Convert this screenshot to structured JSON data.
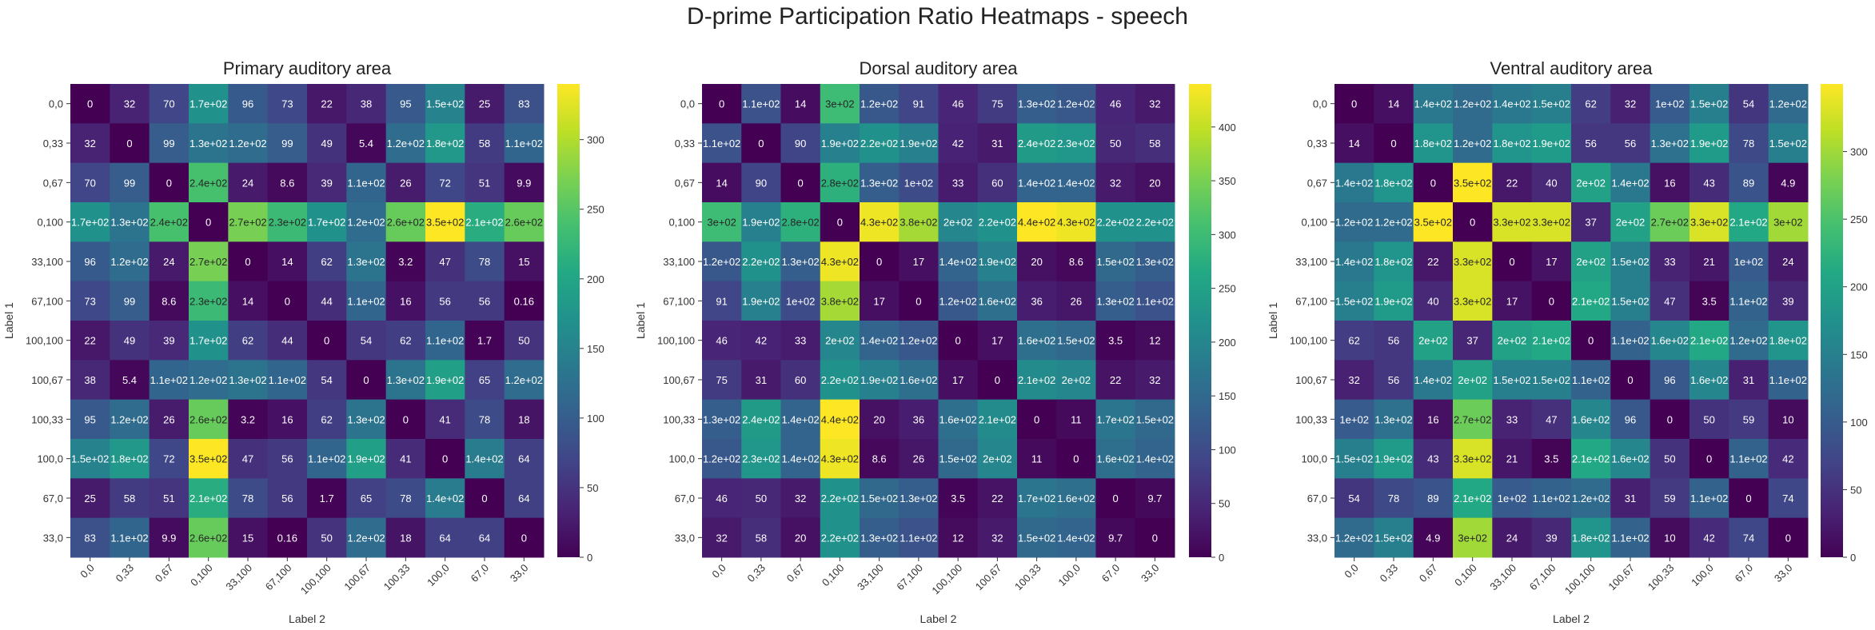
{
  "suptitle": "D-prime Participation Ratio Heatmaps - speech",
  "chart_data": [
    {
      "type": "heatmap",
      "title": "Primary auditory area",
      "xlabel": "Label 2",
      "ylabel": "Label 1",
      "categories": [
        "0,0",
        "0,33",
        "0,67",
        "0,100",
        "33,100",
        "67,100",
        "100,100",
        "100,67",
        "100,33",
        "100,0",
        "67,0",
        "33,0"
      ],
      "colorbar": {
        "min": 0,
        "max": 340,
        "ticks": [
          0,
          50,
          100,
          150,
          200,
          250,
          300
        ]
      },
      "colormap": "viridis",
      "values": [
        [
          0,
          32,
          70,
          170,
          96,
          73,
          22,
          38,
          95,
          150,
          25,
          83
        ],
        [
          32,
          0,
          99,
          130,
          120,
          99,
          49,
          5.4,
          120,
          180,
          58,
          110
        ],
        [
          70,
          99,
          0,
          240,
          24,
          8.6,
          39,
          110,
          26,
          72,
          51,
          9.9
        ],
        [
          170,
          130,
          240,
          0,
          270,
          230,
          170,
          120,
          260,
          350,
          210,
          260
        ],
        [
          96,
          120,
          24,
          270,
          0,
          14,
          62,
          130,
          3.2,
          47,
          78,
          15
        ],
        [
          73,
          99,
          8.6,
          230,
          14,
          0,
          44,
          110,
          16,
          56,
          56,
          0.16
        ],
        [
          22,
          49,
          39,
          170,
          62,
          44,
          0,
          54,
          62,
          110,
          1.7,
          50
        ],
        [
          38,
          5.4,
          110,
          120,
          130,
          110,
          54,
          0,
          130,
          190,
          65,
          120
        ],
        [
          95,
          120,
          26,
          260,
          3.2,
          16,
          62,
          130,
          0,
          41,
          78,
          18
        ],
        [
          150,
          180,
          72,
          350,
          47,
          56,
          110,
          190,
          41,
          0,
          140,
          64
        ],
        [
          25,
          58,
          51,
          210,
          78,
          56,
          1.7,
          65,
          78,
          140,
          0,
          64
        ],
        [
          83,
          110,
          9.9,
          260,
          15,
          0.16,
          50,
          120,
          18,
          64,
          64,
          0
        ]
      ],
      "labels": [
        [
          "0",
          "32",
          "70",
          "1.7e+02",
          "96",
          "73",
          "22",
          "38",
          "95",
          "1.5e+02",
          "25",
          "83"
        ],
        [
          "32",
          "0",
          "99",
          "1.3e+02",
          "1.2e+02",
          "99",
          "49",
          "5.4",
          "1.2e+02",
          "1.8e+02",
          "58",
          "1.1e+02"
        ],
        [
          "70",
          "99",
          "0",
          "2.4e+02",
          "24",
          "8.6",
          "39",
          "1.1e+02",
          "26",
          "72",
          "51",
          "9.9"
        ],
        [
          "1.7e+02",
          "1.3e+02",
          "2.4e+02",
          "0",
          "2.7e+02",
          "2.3e+02",
          "1.7e+02",
          "1.2e+02",
          "2.6e+02",
          "3.5e+02",
          "2.1e+02",
          "2.6e+02"
        ],
        [
          "96",
          "1.2e+02",
          "24",
          "2.7e+02",
          "0",
          "14",
          "62",
          "1.3e+02",
          "3.2",
          "47",
          "78",
          "15"
        ],
        [
          "73",
          "99",
          "8.6",
          "2.3e+02",
          "14",
          "0",
          "44",
          "1.1e+02",
          "16",
          "56",
          "56",
          "0.16"
        ],
        [
          "22",
          "49",
          "39",
          "1.7e+02",
          "62",
          "44",
          "0",
          "54",
          "62",
          "1.1e+02",
          "1.7",
          "50"
        ],
        [
          "38",
          "5.4",
          "1.1e+02",
          "1.2e+02",
          "1.3e+02",
          "1.1e+02",
          "54",
          "0",
          "1.3e+02",
          "1.9e+02",
          "65",
          "1.2e+02"
        ],
        [
          "95",
          "1.2e+02",
          "26",
          "2.6e+02",
          "3.2",
          "16",
          "62",
          "1.3e+02",
          "0",
          "41",
          "78",
          "18"
        ],
        [
          "1.5e+02",
          "1.8e+02",
          "72",
          "3.5e+02",
          "47",
          "56",
          "1.1e+02",
          "1.9e+02",
          "41",
          "0",
          "1.4e+02",
          "64"
        ],
        [
          "25",
          "58",
          "51",
          "2.1e+02",
          "78",
          "56",
          "1.7",
          "65",
          "78",
          "1.4e+02",
          "0",
          "64"
        ],
        [
          "83",
          "1.1e+02",
          "9.9",
          "2.6e+02",
          "15",
          "0.16",
          "50",
          "1.2e+02",
          "18",
          "64",
          "64",
          "0"
        ]
      ]
    },
    {
      "type": "heatmap",
      "title": "Dorsal auditory area",
      "xlabel": "Label 2",
      "ylabel": "Label 1",
      "categories": [
        "0,0",
        "0,33",
        "0,67",
        "0,100",
        "33,100",
        "67,100",
        "100,100",
        "100,67",
        "100,33",
        "100,0",
        "67,0",
        "33,0"
      ],
      "colorbar": {
        "min": 0,
        "max": 440,
        "ticks": [
          0,
          50,
          100,
          150,
          200,
          250,
          300,
          350,
          400
        ]
      },
      "colormap": "viridis",
      "values": [
        [
          0,
          110,
          14,
          300,
          120,
          91,
          46,
          75,
          130,
          120,
          46,
          32
        ],
        [
          110,
          0,
          90,
          190,
          220,
          190,
          42,
          31,
          240,
          230,
          50,
          58
        ],
        [
          14,
          90,
          0,
          280,
          130,
          100,
          33,
          60,
          140,
          140,
          32,
          20
        ],
        [
          300,
          190,
          280,
          0,
          430,
          380,
          200,
          220,
          440,
          430,
          220,
          220
        ],
        [
          120,
          220,
          130,
          430,
          0,
          17,
          140,
          190,
          20,
          8.6,
          150,
          130
        ],
        [
          91,
          190,
          100,
          380,
          17,
          0,
          120,
          160,
          36,
          26,
          130,
          110
        ],
        [
          46,
          42,
          33,
          200,
          140,
          120,
          0,
          17,
          160,
          150,
          3.5,
          12
        ],
        [
          75,
          31,
          60,
          220,
          190,
          160,
          17,
          0,
          210,
          200,
          22,
          32
        ],
        [
          130,
          240,
          140,
          440,
          20,
          36,
          160,
          210,
          0,
          11,
          170,
          150
        ],
        [
          120,
          230,
          140,
          430,
          8.6,
          26,
          150,
          200,
          11,
          0,
          160,
          140
        ],
        [
          46,
          50,
          32,
          220,
          150,
          130,
          3.5,
          22,
          170,
          160,
          0,
          9.7
        ],
        [
          32,
          58,
          20,
          220,
          130,
          110,
          12,
          32,
          150,
          140,
          9.7,
          0
        ]
      ],
      "labels": [
        [
          "0",
          "1.1e+02",
          "14",
          "3e+02",
          "1.2e+02",
          "91",
          "46",
          "75",
          "1.3e+02",
          "1.2e+02",
          "46",
          "32"
        ],
        [
          "1.1e+02",
          "0",
          "90",
          "1.9e+02",
          "2.2e+02",
          "1.9e+02",
          "42",
          "31",
          "2.4e+02",
          "2.3e+02",
          "50",
          "58"
        ],
        [
          "14",
          "90",
          "0",
          "2.8e+02",
          "1.3e+02",
          "1e+02",
          "33",
          "60",
          "1.4e+02",
          "1.4e+02",
          "32",
          "20"
        ],
        [
          "3e+02",
          "1.9e+02",
          "2.8e+02",
          "0",
          "4.3e+02",
          "3.8e+02",
          "2e+02",
          "2.2e+02",
          "4.4e+02",
          "4.3e+02",
          "2.2e+02",
          "2.2e+02"
        ],
        [
          "1.2e+02",
          "2.2e+02",
          "1.3e+02",
          "4.3e+02",
          "0",
          "17",
          "1.4e+02",
          "1.9e+02",
          "20",
          "8.6",
          "1.5e+02",
          "1.3e+02"
        ],
        [
          "91",
          "1.9e+02",
          "1e+02",
          "3.8e+02",
          "17",
          "0",
          "1.2e+02",
          "1.6e+02",
          "36",
          "26",
          "1.3e+02",
          "1.1e+02"
        ],
        [
          "46",
          "42",
          "33",
          "2e+02",
          "1.4e+02",
          "1.2e+02",
          "0",
          "17",
          "1.6e+02",
          "1.5e+02",
          "3.5",
          "12"
        ],
        [
          "75",
          "31",
          "60",
          "2.2e+02",
          "1.9e+02",
          "1.6e+02",
          "17",
          "0",
          "2.1e+02",
          "2e+02",
          "22",
          "32"
        ],
        [
          "1.3e+02",
          "2.4e+02",
          "1.4e+02",
          "4.4e+02",
          "20",
          "36",
          "1.6e+02",
          "2.1e+02",
          "0",
          "11",
          "1.7e+02",
          "1.5e+02"
        ],
        [
          "1.2e+02",
          "2.3e+02",
          "1.4e+02",
          "4.3e+02",
          "8.6",
          "26",
          "1.5e+02",
          "2e+02",
          "11",
          "0",
          "1.6e+02",
          "1.4e+02"
        ],
        [
          "46",
          "50",
          "32",
          "2.2e+02",
          "1.5e+02",
          "1.3e+02",
          "3.5",
          "22",
          "1.7e+02",
          "1.6e+02",
          "0",
          "9.7"
        ],
        [
          "32",
          "58",
          "20",
          "2.2e+02",
          "1.3e+02",
          "1.1e+02",
          "12",
          "32",
          "1.5e+02",
          "1.4e+02",
          "9.7",
          "0"
        ]
      ]
    },
    {
      "type": "heatmap",
      "title": "Ventral auditory area",
      "xlabel": "Label 2",
      "ylabel": "Label 1",
      "categories": [
        "0,0",
        "0,33",
        "0,67",
        "0,100",
        "33,100",
        "67,100",
        "100,100",
        "100,67",
        "100,33",
        "100,0",
        "67,0",
        "33,0"
      ],
      "colorbar": {
        "min": 0,
        "max": 350,
        "ticks": [
          0,
          50,
          100,
          150,
          200,
          250,
          300
        ]
      },
      "colormap": "viridis",
      "values": [
        [
          0,
          14,
          140,
          120,
          140,
          150,
          62,
          32,
          100,
          150,
          54,
          120
        ],
        [
          14,
          0,
          180,
          120,
          180,
          190,
          56,
          56,
          130,
          190,
          78,
          150
        ],
        [
          140,
          180,
          0,
          350,
          22,
          40,
          200,
          140,
          16,
          43,
          89,
          4.9
        ],
        [
          120,
          120,
          350,
          0,
          330,
          330,
          37,
          200,
          270,
          330,
          210,
          300
        ],
        [
          140,
          180,
          22,
          330,
          0,
          17,
          200,
          150,
          33,
          21,
          100,
          24
        ],
        [
          150,
          190,
          40,
          330,
          17,
          0,
          210,
          150,
          47,
          3.5,
          110,
          39
        ],
        [
          62,
          56,
          200,
          37,
          200,
          210,
          0,
          110,
          160,
          210,
          120,
          180
        ],
        [
          32,
          56,
          140,
          200,
          150,
          150,
          110,
          0,
          96,
          160,
          31,
          110
        ],
        [
          100,
          130,
          16,
          270,
          33,
          47,
          160,
          96,
          0,
          50,
          59,
          10
        ],
        [
          150,
          190,
          43,
          330,
          21,
          3.5,
          210,
          160,
          50,
          0,
          110,
          42
        ],
        [
          54,
          78,
          89,
          210,
          100,
          110,
          120,
          31,
          59,
          110,
          0,
          74
        ],
        [
          120,
          150,
          4.9,
          300,
          24,
          39,
          180,
          110,
          10,
          42,
          74,
          0
        ]
      ],
      "labels": [
        [
          "0",
          "14",
          "1.4e+02",
          "1.2e+02",
          "1.4e+02",
          "1.5e+02",
          "62",
          "32",
          "1e+02",
          "1.5e+02",
          "54",
          "1.2e+02"
        ],
        [
          "14",
          "0",
          "1.8e+02",
          "1.2e+02",
          "1.8e+02",
          "1.9e+02",
          "56",
          "56",
          "1.3e+02",
          "1.9e+02",
          "78",
          "1.5e+02"
        ],
        [
          "1.4e+02",
          "1.8e+02",
          "0",
          "3.5e+02",
          "22",
          "40",
          "2e+02",
          "1.4e+02",
          "16",
          "43",
          "89",
          "4.9"
        ],
        [
          "1.2e+02",
          "1.2e+02",
          "3.5e+02",
          "0",
          "3.3e+02",
          "3.3e+02",
          "37",
          "2e+02",
          "2.7e+02",
          "3.3e+02",
          "2.1e+02",
          "3e+02"
        ],
        [
          "1.4e+02",
          "1.8e+02",
          "22",
          "3.3e+02",
          "0",
          "17",
          "2e+02",
          "1.5e+02",
          "33",
          "21",
          "1e+02",
          "24"
        ],
        [
          "1.5e+02",
          "1.9e+02",
          "40",
          "3.3e+02",
          "17",
          "0",
          "2.1e+02",
          "1.5e+02",
          "47",
          "3.5",
          "1.1e+02",
          "39"
        ],
        [
          "62",
          "56",
          "2e+02",
          "37",
          "2e+02",
          "2.1e+02",
          "0",
          "1.1e+02",
          "1.6e+02",
          "2.1e+02",
          "1.2e+02",
          "1.8e+02"
        ],
        [
          "32",
          "56",
          "1.4e+02",
          "2e+02",
          "1.5e+02",
          "1.5e+02",
          "1.1e+02",
          "0",
          "96",
          "1.6e+02",
          "31",
          "1.1e+02"
        ],
        [
          "1e+02",
          "1.3e+02",
          "16",
          "2.7e+02",
          "33",
          "47",
          "1.6e+02",
          "96",
          "0",
          "50",
          "59",
          "10"
        ],
        [
          "1.5e+02",
          "1.9e+02",
          "43",
          "3.3e+02",
          "21",
          "3.5",
          "2.1e+02",
          "1.6e+02",
          "50",
          "0",
          "1.1e+02",
          "42"
        ],
        [
          "54",
          "78",
          "89",
          "2.1e+02",
          "1e+02",
          "1.1e+02",
          "1.2e+02",
          "31",
          "59",
          "1.1e+02",
          "0",
          "74"
        ],
        [
          "1.2e+02",
          "1.5e+02",
          "4.9",
          "3e+02",
          "24",
          "39",
          "1.8e+02",
          "1.1e+02",
          "10",
          "42",
          "74",
          "0"
        ]
      ]
    }
  ]
}
